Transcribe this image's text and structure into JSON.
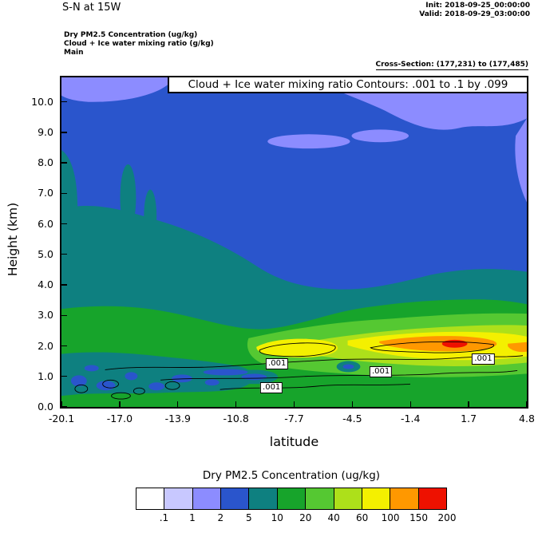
{
  "header": {
    "title": "S-N at 15W",
    "init_label": "Init: 2018-09-25_00:00:00",
    "valid_label": "Valid: 2018-09-29_03:00:00",
    "field1": "Dry PM2.5 Concentration   (ug/kg)",
    "field2": "Cloud + Ice water mixing ratio   (g/kg)",
    "field3": "Main",
    "cross_section": "Cross-Section: (177,231) to (177,485)"
  },
  "chart_data": {
    "type": "heatmap",
    "subtype": "filled-contour vertical cross-section with line contours overlay",
    "title": "Cloud + Ice water mixing ratio Contours: .001 to .1 by .099",
    "xlabel": "latitude",
    "ylabel": "Height (km)",
    "xlim": [
      -20.1,
      4.8
    ],
    "ylim": [
      0,
      10.8
    ],
    "x_ticks": [
      "-20.1",
      "-17.0",
      "-13.9",
      "-10.8",
      "-7.7",
      "-4.5",
      "-1.4",
      "1.7",
      "4.8"
    ],
    "y_ticks": [
      "0.0",
      "1.0",
      "2.0",
      "3.0",
      "4.0",
      "5.0",
      "6.0",
      "7.0",
      "8.0",
      "9.0",
      "10.0"
    ],
    "fill_field": "Dry PM2.5 Concentration (ug/kg)",
    "contour_field": "Cloud + Ice water mixing ratio (g/kg)",
    "contour_levels": ".001 to .1 by .099",
    "annotations": [
      {
        "text": ".001",
        "lat": -8.56,
        "km": 1.4
      },
      {
        "text": ".001",
        "lat": -3.01,
        "km": 1.14
      },
      {
        "text": ".001",
        "lat": -8.86,
        "km": 0.62
      },
      {
        "text": ".001",
        "lat": 2.47,
        "km": 1.56
      }
    ],
    "colorbar": {
      "title": "Dry PM2.5 Concentration  (ug/kg)",
      "tick_labels": [
        ".1",
        "1",
        "2",
        "5",
        "10",
        "20",
        "40",
        "60",
        "100",
        "150",
        "200"
      ],
      "colors": [
        "#FFFFFF",
        "#C8C8FF",
        "#8C8CFF",
        "#2A55CC",
        "#0E8080",
        "#17A42B",
        "#55C832",
        "#ADE01A",
        "#F4F000",
        "#FF9800",
        "#EE1100"
      ]
    }
  }
}
